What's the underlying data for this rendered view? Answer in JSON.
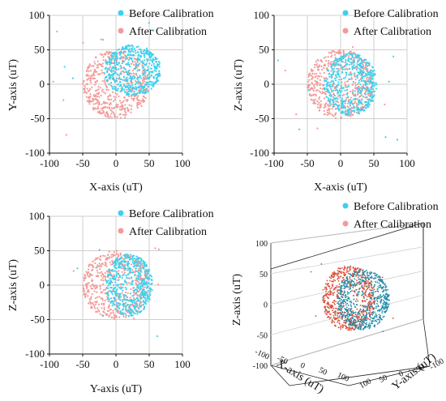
{
  "chart_data": [
    {
      "type": "scatter",
      "xlabel": "X-axis (uT)",
      "ylabel": "Y-axis (uT)",
      "xlim": [
        -100,
        100
      ],
      "ylim": [
        -100,
        100
      ],
      "ticks": [
        -100,
        -50,
        0,
        50,
        100
      ],
      "grid": true,
      "legend": "top-right",
      "series": [
        {
          "name": "Before Calibration",
          "color": "#3fd0ec",
          "center": [
            25,
            20
          ],
          "radii": [
            43,
            37
          ]
        },
        {
          "name": "After Calibration",
          "color": "#f39a98",
          "center": [
            0,
            0
          ],
          "radii": [
            50,
            50
          ]
        }
      ]
    },
    {
      "type": "scatter",
      "xlabel": "X-axis (uT)",
      "ylabel": "Z-axis (uT)",
      "xlim": [
        -100,
        100
      ],
      "ylim": [
        -100,
        100
      ],
      "ticks": [
        -100,
        -50,
        0,
        50,
        100
      ],
      "grid": true,
      "legend": "top-right",
      "series": [
        {
          "name": "Before Calibration",
          "color": "#3fd0ec",
          "center": [
            15,
            0
          ],
          "radii": [
            40,
            45
          ]
        },
        {
          "name": "After Calibration",
          "color": "#f39a98",
          "center": [
            0,
            0
          ],
          "radii": [
            50,
            50
          ]
        }
      ]
    },
    {
      "type": "scatter",
      "xlabel": "Y-axis (uT)",
      "ylabel": "Z-axis (uT)",
      "xlim": [
        -100,
        100
      ],
      "ylim": [
        -100,
        100
      ],
      "ticks": [
        -100,
        -50,
        0,
        50,
        100
      ],
      "grid": true,
      "legend": "top-right",
      "series": [
        {
          "name": "Before Calibration",
          "color": "#3fd0ec",
          "center": [
            20,
            0
          ],
          "radii": [
            35,
            45
          ]
        },
        {
          "name": "After Calibration",
          "color": "#f39a98",
          "center": [
            0,
            0
          ],
          "radii": [
            50,
            50
          ]
        }
      ]
    },
    {
      "type": "scatter",
      "dimensions": 3,
      "xlabel": "X-axis (uT)",
      "ylabel": "Y-axis (uT)",
      "zlabel": "Z-axis (uT)",
      "ticks": [
        -100,
        -50,
        0,
        50,
        100
      ],
      "legend": "top-right",
      "series": [
        {
          "name": "Before Calibration",
          "color": "#1e8aa8"
        },
        {
          "name": "After Calibration",
          "color": "#d94f38"
        }
      ]
    }
  ]
}
